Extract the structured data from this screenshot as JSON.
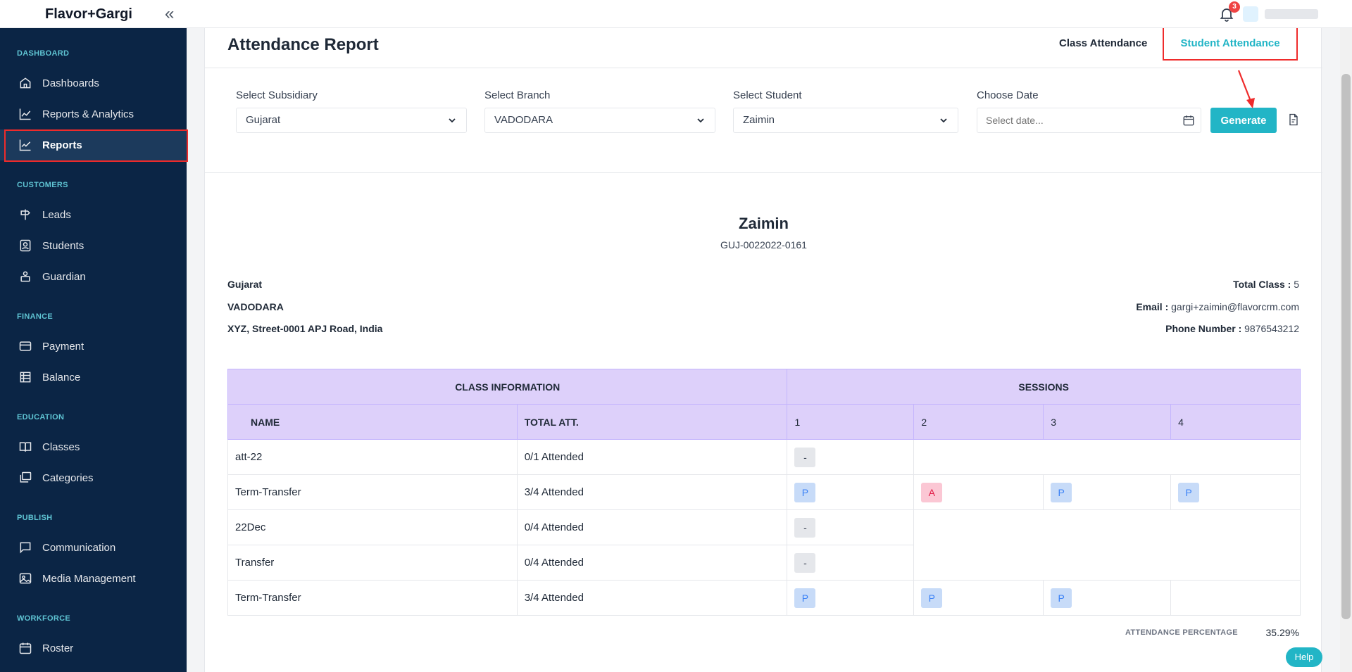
{
  "app": {
    "brand": "Flavor+Gargi",
    "collapse_icon": "«",
    "notification_count": "3",
    "help_label": "Help"
  },
  "sidebar": {
    "sections": [
      {
        "title": "DASHBOARD",
        "items": [
          {
            "label": "Dashboards",
            "icon": "home-icon"
          },
          {
            "label": "Reports & Analytics",
            "icon": "chart-icon"
          },
          {
            "label": "Reports",
            "icon": "chart-line-icon",
            "active": true
          }
        ]
      },
      {
        "title": "CUSTOMERS",
        "items": [
          {
            "label": "Leads",
            "icon": "signpost-icon"
          },
          {
            "label": "Students",
            "icon": "contact-icon"
          },
          {
            "label": "Guardian",
            "icon": "guardian-icon"
          }
        ]
      },
      {
        "title": "FINANCE",
        "items": [
          {
            "label": "Payment",
            "icon": "card-icon"
          },
          {
            "label": "Balance",
            "icon": "ledger-icon"
          }
        ]
      },
      {
        "title": "EDUCATION",
        "items": [
          {
            "label": "Classes",
            "icon": "book-icon"
          },
          {
            "label": "Categories",
            "icon": "layers-icon"
          }
        ]
      },
      {
        "title": "PUBLISH",
        "items": [
          {
            "label": "Communication",
            "icon": "message-icon"
          },
          {
            "label": "Media Management",
            "icon": "image-icon"
          }
        ]
      },
      {
        "title": "WORKFORCE",
        "items": [
          {
            "label": "Roster",
            "icon": "calendar-icon"
          }
        ]
      }
    ]
  },
  "page": {
    "title": "Attendance Report",
    "tabs": {
      "class": "Class Attendance",
      "student": "Student Attendance"
    }
  },
  "filters": {
    "subsidiary": {
      "label": "Select Subsidiary",
      "value": "Gujarat"
    },
    "branch": {
      "label": "Select Branch",
      "value": "VADODARA"
    },
    "student": {
      "label": "Select Student",
      "value": "Zaimin"
    },
    "date": {
      "label": "Choose Date",
      "placeholder": "Select date..."
    },
    "generate_label": "Generate"
  },
  "report": {
    "student_name": "Zaimin",
    "student_code": "GUJ-0022022-0161",
    "subsidiary": "Gujarat",
    "branch": "VADODARA",
    "address": "XYZ, Street-0001 APJ Road, India",
    "total_class_label": "Total Class :",
    "total_class_value": "5",
    "email_label": "Email :",
    "email_value": "gargi+zaimin@flavorcrm.com",
    "phone_label": "Phone Number :",
    "phone_value": "9876543212",
    "attendance_percentage_label": "ATTENDANCE PERCENTAGE",
    "attendance_percentage_value": "35.29%"
  },
  "table": {
    "group_headers": {
      "class_info": "CLASS INFORMATION",
      "sessions": "SESSIONS"
    },
    "columns": {
      "name": "NAME",
      "total": "TOTAL ATT.",
      "sessions": [
        "1",
        "2",
        "3",
        "4"
      ]
    },
    "rows": [
      {
        "name": "att-22",
        "total": "0/1 Attended",
        "sessions": [
          "-"
        ]
      },
      {
        "name": "Term-Transfer",
        "total": "3/4 Attended",
        "sessions": [
          "P",
          "A",
          "P",
          "P"
        ]
      },
      {
        "name": "22Dec",
        "total": "0/4 Attended",
        "sessions": [
          "-"
        ]
      },
      {
        "name": "Transfer",
        "total": "0/4 Attended",
        "sessions": [
          "-"
        ]
      },
      {
        "name": "Term-Transfer",
        "total": "3/4 Attended",
        "sessions": [
          "P",
          "P",
          "P"
        ]
      }
    ]
  },
  "colors": {
    "accent": "#22b5c6",
    "sidebar": "#0b2545",
    "header_bg": "#ddd0fa",
    "highlight": "#ef2b2b"
  }
}
